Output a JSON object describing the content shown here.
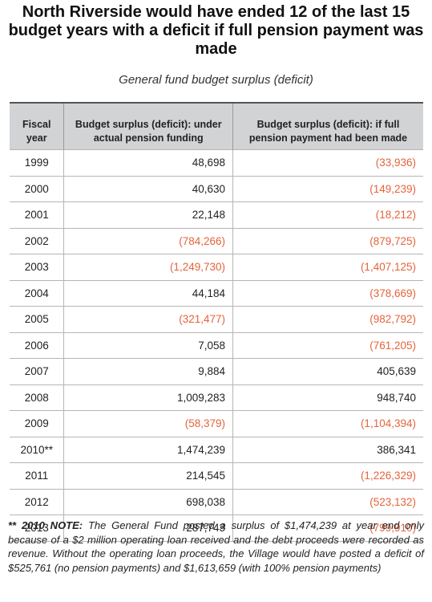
{
  "header": {
    "title": "North Riverside would have ended 12 of the last 15 budget years with a deficit if full pension payment was made",
    "subtitle": "General fund budget surplus (deficit)"
  },
  "table": {
    "columns": [
      "Fiscal year",
      "Budget surplus (deficit): under actual pension funding",
      "Budget surplus (deficit): if full pension payment had been made"
    ],
    "rows": [
      [
        "1999",
        "48,698",
        "(33,936)"
      ],
      [
        "2000",
        "40,630",
        "(149,239)"
      ],
      [
        "2001",
        "22,148",
        "(18,212)"
      ],
      [
        "2002",
        "(784,266)",
        "(879,725)"
      ],
      [
        "2003",
        "(1,249,730)",
        "(1,407,125)"
      ],
      [
        "2004",
        "44,184",
        "(378,669)"
      ],
      [
        "2005",
        "(321,477)",
        "(982,792)"
      ],
      [
        "2006",
        "7,058",
        "(761,205)"
      ],
      [
        "2007",
        "9,884",
        "405,639"
      ],
      [
        "2008",
        "1,009,283",
        "948,740"
      ],
      [
        "2009",
        "(58,379)",
        "(1,104,394)"
      ],
      [
        "2010**",
        "1,474,239",
        "386,341"
      ],
      [
        "2011",
        "214,545",
        "(1,226,329)"
      ],
      [
        "2012",
        "698,038",
        "(523,132)"
      ],
      [
        "2013",
        "287,743",
        "(799,910)"
      ]
    ]
  },
  "note": {
    "label": "** 2010 NOTE:",
    "text": "The General Fund posted a surplus of $1,474,239 at year end only because of a $2 million operating loan received and the debt proceeds were recorded as revenue. Without the operating loan proceeds, the Village would have posted a deficit of $525,761 (no pension payments) and $1,613,659 (with 100% pension payments)"
  }
}
